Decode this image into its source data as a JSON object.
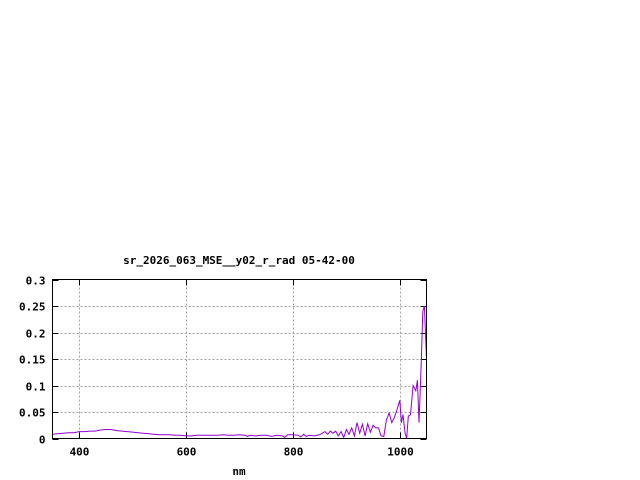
{
  "chart_data": {
    "type": "line",
    "title": "sr_2026_063_MSE__y02_r_rad 05-42-00",
    "xlabel": "nm",
    "ylabel": "",
    "xlim": [
      350,
      1050
    ],
    "ylim": [
      0,
      0.3
    ],
    "xticks": [
      400,
      600,
      800,
      1000
    ],
    "xtick_labels": [
      "400",
      "600",
      "800",
      "1000"
    ],
    "yticks": [
      0,
      0.05,
      0.1,
      0.15,
      0.2,
      0.25,
      0.3
    ],
    "ytick_labels": [
      "0",
      "0.05",
      "0.1",
      "0.15",
      "0.2",
      "0.25",
      "0.3"
    ],
    "grid": true,
    "line_color": "#9400d3",
    "series": [
      {
        "x": [
          350,
          360,
          370,
          380,
          390,
          400,
          410,
          420,
          430,
          440,
          450,
          460,
          470,
          480,
          490,
          500,
          510,
          520,
          530,
          540,
          550,
          560,
          570,
          580,
          590,
          600,
          610,
          620,
          630,
          640,
          650,
          660,
          670,
          680,
          690,
          700,
          710,
          715,
          720,
          730,
          740,
          750,
          760,
          770,
          780,
          785,
          790,
          800,
          810,
          815,
          820,
          825,
          830,
          840,
          850,
          860,
          865,
          870,
          875,
          880,
          885,
          890,
          895,
          900,
          905,
          910,
          915,
          920,
          925,
          930,
          935,
          940,
          945,
          950,
          955,
          960,
          965,
          970,
          975,
          980,
          985,
          990,
          995,
          1000,
          1003,
          1006,
          1010,
          1013,
          1016,
          1020,
          1025,
          1030,
          1033,
          1036,
          1040,
          1043,
          1046,
          1050
        ],
        "y": [
          0.008,
          0.009,
          0.01,
          0.011,
          0.011,
          0.013,
          0.013,
          0.014,
          0.014,
          0.016,
          0.017,
          0.017,
          0.015,
          0.014,
          0.013,
          0.012,
          0.011,
          0.01,
          0.009,
          0.008,
          0.007,
          0.007,
          0.007,
          0.006,
          0.006,
          0.005,
          0.005,
          0.006,
          0.006,
          0.006,
          0.006,
          0.006,
          0.007,
          0.006,
          0.006,
          0.007,
          0.006,
          0.004,
          0.006,
          0.005,
          0.006,
          0.006,
          0.004,
          0.006,
          0.005,
          0.002,
          0.007,
          0.007,
          0.006,
          0.003,
          0.008,
          0.004,
          0.006,
          0.005,
          0.007,
          0.013,
          0.008,
          0.014,
          0.01,
          0.014,
          0.005,
          0.013,
          0.002,
          0.017,
          0.008,
          0.02,
          0.005,
          0.03,
          0.01,
          0.027,
          0.005,
          0.028,
          0.012,
          0.025,
          0.02,
          0.02,
          0.005,
          0.004,
          0.035,
          0.048,
          0.03,
          0.04,
          0.055,
          0.072,
          0.03,
          0.045,
          0.01,
          0.0,
          0.042,
          0.045,
          0.1,
          0.09,
          0.11,
          0.03,
          0.14,
          0.24,
          0.25,
          0.15
        ]
      }
    ]
  }
}
